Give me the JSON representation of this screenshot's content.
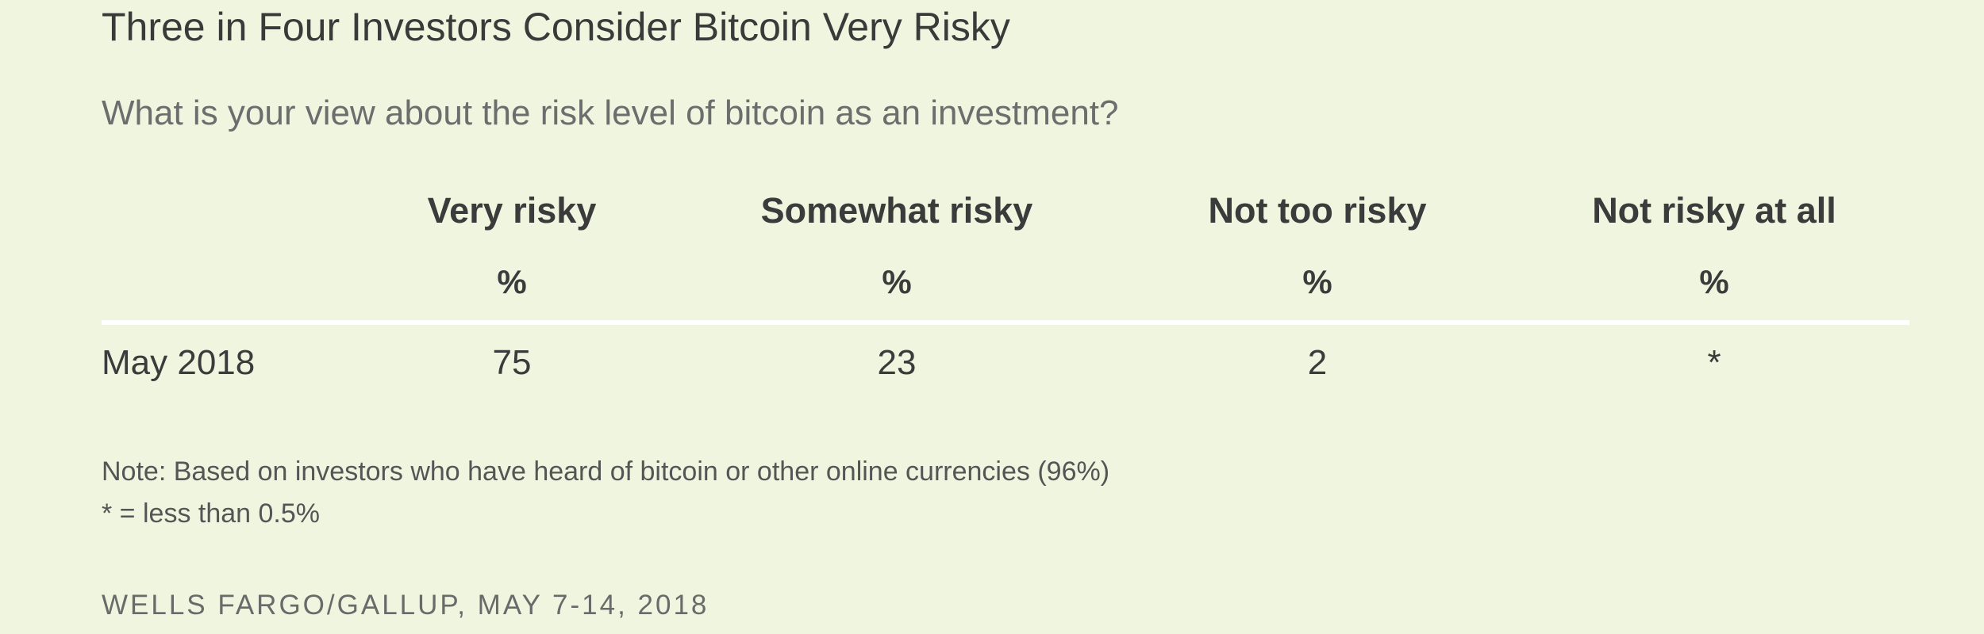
{
  "title": "Three in Four Investors Consider Bitcoin Very Risky",
  "subtitle": "What is your view about the risk level of bitcoin as an investment?",
  "chart_data": {
    "type": "table",
    "columns": [
      {
        "label": "Very risky",
        "unit": "%"
      },
      {
        "label": "Somewhat risky",
        "unit": "%"
      },
      {
        "label": "Not too risky",
        "unit": "%"
      },
      {
        "label": "Not risky at all",
        "unit": "%"
      }
    ],
    "rows": [
      {
        "label": "May 2018",
        "values": [
          "75",
          "23",
          "2",
          "*"
        ]
      }
    ]
  },
  "notes": [
    "Note: Based on investors who have heard of bitcoin or other online currencies (96%)",
    "* = less than 0.5%"
  ],
  "source": "WELLS FARGO/GALLUP, MAY 7-14, 2018"
}
